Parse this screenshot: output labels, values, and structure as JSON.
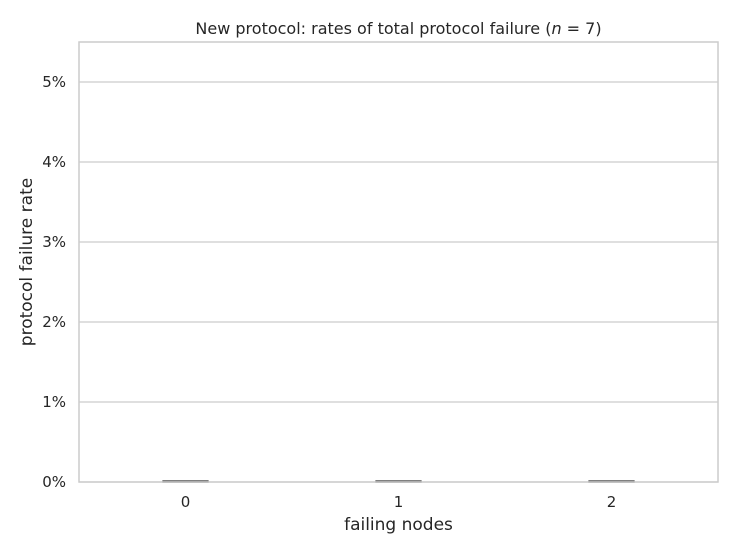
{
  "chart_data": {
    "type": "bar",
    "title": "New protocol: rates of total protocol failure (n = 7)",
    "title_parts": [
      "New protocol: rates of total protocol failure (",
      "n",
      " = 7)"
    ],
    "xlabel": "failing nodes",
    "ylabel": "protocol failure rate",
    "categories": [
      "0",
      "1",
      "2"
    ],
    "values": [
      0,
      0,
      0
    ],
    "ylim": [
      0,
      0.055
    ],
    "yticks": [
      0,
      0.01,
      0.02,
      0.03,
      0.04,
      0.05
    ],
    "ytick_labels": [
      "0%",
      "1%",
      "2%",
      "3%",
      "4%",
      "5%"
    ],
    "grid": "horizontal",
    "colors": {
      "grid": "#cccccc",
      "spine": "#cccccc",
      "bar_edge": "#555555",
      "text": "#262626"
    }
  }
}
